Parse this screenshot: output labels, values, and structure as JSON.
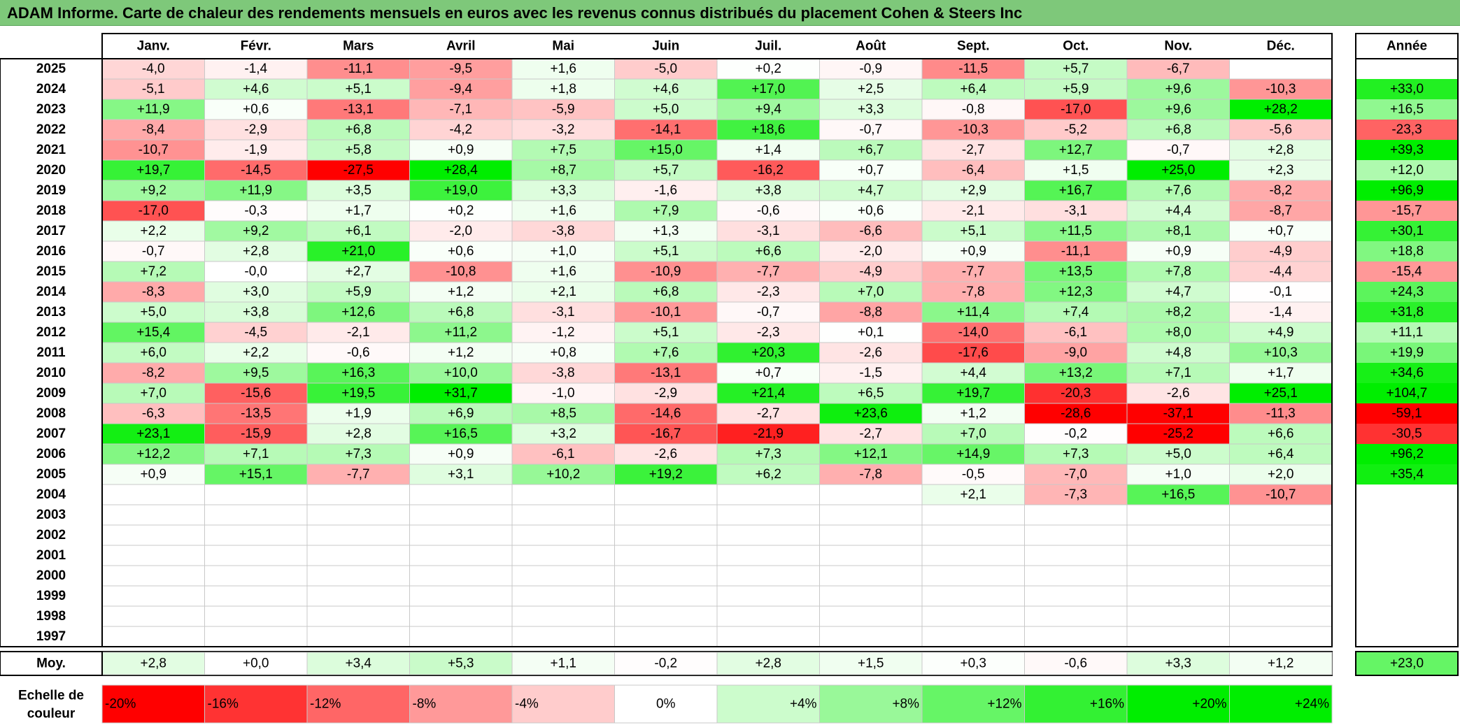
{
  "title": "ADAM Informe. Carte de chaleur des rendements mensuels en euros avec les revenus connus distribués du placement Cohen & Steers Inc",
  "colors": {
    "title_bg": "#7ec87a",
    "neg_max": "#ff0000",
    "pos_max": "#00ee00",
    "neutral": "#ffffff"
  },
  "chart_data": {
    "type": "heatmap",
    "title": "ADAM Informe. Carte de chaleur des rendements mensuels en euros avec les revenus connus distribués du placement Cohen & Steers Inc",
    "columns": [
      "Janv.",
      "Févr.",
      "Mars",
      "Avril",
      "Mai",
      "Juin",
      "Juil.",
      "Août",
      "Sept.",
      "Oct.",
      "Nov.",
      "Déc."
    ],
    "year_header": "Année",
    "years": [
      "2025",
      "2024",
      "2023",
      "2022",
      "2021",
      "2020",
      "2019",
      "2018",
      "2017",
      "2016",
      "2015",
      "2014",
      "2013",
      "2012",
      "2011",
      "2010",
      "2009",
      "2008",
      "2007",
      "2006",
      "2005",
      "2004",
      "2003",
      "2002",
      "2001",
      "2000",
      "1999",
      "1998",
      "1997"
    ],
    "monthly": [
      [
        "-4,0",
        "-1,4",
        "-11,1",
        "-9,5",
        "+1,6",
        "-5,0",
        "+0,2",
        "-0,9",
        "-11,5",
        "+5,7",
        "-6,7",
        ""
      ],
      [
        "-5,1",
        "+4,6",
        "+5,1",
        "-9,4",
        "+1,8",
        "+4,6",
        "+17,0",
        "+2,5",
        "+6,4",
        "+5,9",
        "+9,6",
        "-10,3"
      ],
      [
        "+11,9",
        "+0,6",
        "-13,1",
        "-7,1",
        "-5,9",
        "+5,0",
        "+9,4",
        "+3,3",
        "-0,8",
        "-17,0",
        "+9,6",
        "+28,2"
      ],
      [
        "-8,4",
        "-2,9",
        "+6,8",
        "-4,2",
        "-3,2",
        "-14,1",
        "+18,6",
        "-0,7",
        "-10,3",
        "-5,2",
        "+6,8",
        "-5,6"
      ],
      [
        "-10,7",
        "-1,9",
        "+5,8",
        "+0,9",
        "+7,5",
        "+15,0",
        "+1,4",
        "+6,7",
        "-2,7",
        "+12,7",
        "-0,7",
        "+2,8"
      ],
      [
        "+19,7",
        "-14,5",
        "-27,5",
        "+28,4",
        "+8,7",
        "+5,7",
        "-16,2",
        "+0,7",
        "-6,4",
        "+1,5",
        "+25,0",
        "+2,3"
      ],
      [
        "+9,2",
        "+11,9",
        "+3,5",
        "+19,0",
        "+3,3",
        "-1,6",
        "+3,8",
        "+4,7",
        "+2,9",
        "+16,7",
        "+7,6",
        "-8,2"
      ],
      [
        "-17,0",
        "-0,3",
        "+1,7",
        "+0,2",
        "+1,6",
        "+7,9",
        "-0,6",
        "+0,6",
        "-2,1",
        "-3,1",
        "+4,4",
        "-8,7"
      ],
      [
        "+2,2",
        "+9,2",
        "+6,1",
        "-2,0",
        "-3,8",
        "+1,3",
        "-3,1",
        "-6,6",
        "+5,1",
        "+11,5",
        "+8,1",
        "+0,7"
      ],
      [
        "-0,7",
        "+2,8",
        "+21,0",
        "+0,6",
        "+1,0",
        "+5,1",
        "+6,6",
        "-2,0",
        "+0,9",
        "-11,1",
        "+0,9",
        "-4,9"
      ],
      [
        "+7,2",
        "-0,0",
        "+2,7",
        "-10,8",
        "+1,6",
        "-10,9",
        "-7,7",
        "-4,9",
        "-7,7",
        "+13,5",
        "+7,8",
        "-4,4"
      ],
      [
        "-8,3",
        "+3,0",
        "+5,9",
        "+1,2",
        "+2,1",
        "+6,8",
        "-2,3",
        "+7,0",
        "-7,8",
        "+12,3",
        "+4,7",
        "-0,1"
      ],
      [
        "+5,0",
        "+3,8",
        "+12,6",
        "+6,8",
        "-3,1",
        "-10,1",
        "-0,7",
        "-8,8",
        "+11,4",
        "+7,4",
        "+8,2",
        "-1,4"
      ],
      [
        "+15,4",
        "-4,5",
        "-2,1",
        "+11,2",
        "-1,2",
        "+5,1",
        "-2,3",
        "+0,1",
        "-14,0",
        "-6,1",
        "+8,0",
        "+4,9"
      ],
      [
        "+6,0",
        "+2,2",
        "-0,6",
        "+1,2",
        "+0,8",
        "+7,6",
        "+20,3",
        "-2,6",
        "-17,6",
        "-9,0",
        "+4,8",
        "+10,3"
      ],
      [
        "-8,2",
        "+9,5",
        "+16,3",
        "+10,0",
        "-3,8",
        "-13,1",
        "+0,7",
        "-1,5",
        "+4,4",
        "+13,2",
        "+7,1",
        "+1,7"
      ],
      [
        "+7,0",
        "-15,6",
        "+19,5",
        "+31,7",
        "-1,0",
        "-2,9",
        "+21,4",
        "+6,5",
        "+19,7",
        "-20,3",
        "-2,6",
        "+25,1"
      ],
      [
        "-6,3",
        "-13,5",
        "+1,9",
        "+6,9",
        "+8,5",
        "-14,6",
        "-2,7",
        "+23,6",
        "+1,2",
        "-28,6",
        "-37,1",
        "-11,3"
      ],
      [
        "+23,1",
        "-15,9",
        "+2,8",
        "+16,5",
        "+3,2",
        "-16,7",
        "-21,9",
        "-2,7",
        "+7,0",
        "-0,2",
        "-25,2",
        "+6,6"
      ],
      [
        "+12,2",
        "+7,1",
        "+7,3",
        "+0,9",
        "-6,1",
        "-2,6",
        "+7,3",
        "+12,1",
        "+14,9",
        "+7,3",
        "+5,0",
        "+6,4"
      ],
      [
        "+0,9",
        "+15,1",
        "-7,7",
        "+3,1",
        "+10,2",
        "+19,2",
        "+6,2",
        "-7,8",
        "-0,5",
        "-7,0",
        "+1,0",
        "+2,0"
      ],
      [
        "",
        "",
        "",
        "",
        "",
        "",
        "",
        "",
        "+2,1",
        "-7,3",
        "+16,5",
        "-10,7"
      ],
      [
        "",
        "",
        "",
        "",
        "",
        "",
        "",
        "",
        "",
        "",
        "",
        ""
      ],
      [
        "",
        "",
        "",
        "",
        "",
        "",
        "",
        "",
        "",
        "",
        "",
        ""
      ],
      [
        "",
        "",
        "",
        "",
        "",
        "",
        "",
        "",
        "",
        "",
        "",
        ""
      ],
      [
        "",
        "",
        "",
        "",
        "",
        "",
        "",
        "",
        "",
        "",
        "",
        ""
      ],
      [
        "",
        "",
        "",
        "",
        "",
        "",
        "",
        "",
        "",
        "",
        "",
        ""
      ],
      [
        "",
        "",
        "",
        "",
        "",
        "",
        "",
        "",
        "",
        "",
        "",
        ""
      ],
      [
        "",
        "",
        "",
        "",
        "",
        "",
        "",
        "",
        "",
        "",
        "",
        ""
      ]
    ],
    "annual": [
      "",
      "+33,0",
      "+16,5",
      "-23,3",
      "+39,3",
      "+12,0",
      "+96,9",
      "-15,7",
      "+30,1",
      "+18,8",
      "-15,4",
      "+24,3",
      "+31,8",
      "+11,1",
      "+19,9",
      "+34,6",
      "+104,7",
      "-59,1",
      "-30,5",
      "+96,2",
      "+35,4",
      "",
      "",
      "",
      "",
      "",
      "",
      "",
      ""
    ],
    "average_label": "Moy.",
    "average": [
      "+2,8",
      "+0,0",
      "+3,4",
      "+5,3",
      "+1,1",
      "-0,2",
      "+2,8",
      "+1,5",
      "+0,3",
      "-0,6",
      "+3,3",
      "+1,2"
    ],
    "average_annual": "+23,0",
    "scale_label": [
      "Echelle de",
      "couleur"
    ],
    "scale": [
      "-20%",
      "-16%",
      "-12%",
      "-8%",
      "-4%",
      "0%",
      "+4%",
      "+8%",
      "+12%",
      "+16%",
      "+20%",
      "+24%"
    ]
  }
}
